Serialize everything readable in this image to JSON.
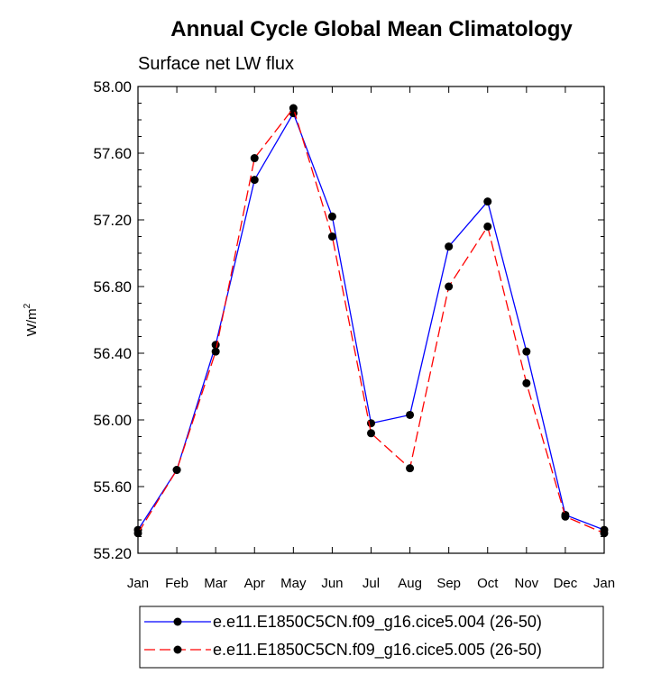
{
  "chart_data": {
    "type": "line",
    "title": "Annual Cycle Global Mean Climatology",
    "subtitle": "Surface net LW flux",
    "ylabel": "W/m",
    "ylabel_sup": "2",
    "categories": [
      "Jan",
      "Feb",
      "Mar",
      "Apr",
      "May",
      "Jun",
      "Jul",
      "Aug",
      "Sep",
      "Oct",
      "Nov",
      "Dec",
      "Jan"
    ],
    "ylim": [
      55.2,
      58.0
    ],
    "yticks": [
      "55.20",
      "55.60",
      "56.00",
      "56.40",
      "56.80",
      "57.20",
      "57.60",
      "58.00"
    ],
    "grid": false,
    "legend_position": "bottom",
    "series": [
      {
        "name": "e.e11.E1850C5CN.f09_g16.cice5.004 (26-50)",
        "color": "#0000ff",
        "dash": "solid",
        "values": [
          55.34,
          55.7,
          56.45,
          57.44,
          57.84,
          57.22,
          55.98,
          56.03,
          57.04,
          57.31,
          56.41,
          55.43,
          55.34
        ]
      },
      {
        "name": "e.e11.E1850C5CN.f09_g16.cice5.005 (26-50)",
        "color": "#ff0000",
        "dash": "dashed",
        "values": [
          55.32,
          55.7,
          56.41,
          57.57,
          57.87,
          57.1,
          55.92,
          55.71,
          56.8,
          57.16,
          56.22,
          55.42,
          55.32
        ]
      }
    ]
  }
}
